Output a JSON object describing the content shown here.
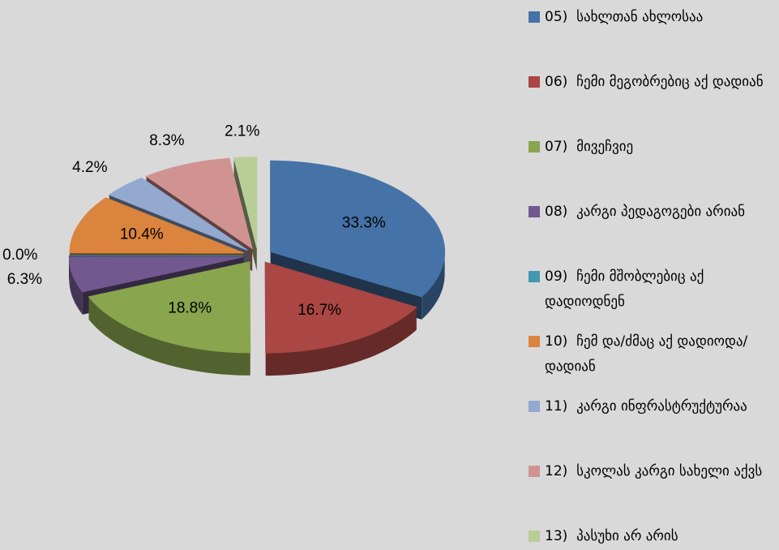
{
  "chart_data": {
    "type": "pie",
    "categories": [
      "05)  სახლთან ახლოსაა",
      "06)  ჩემი მეგობრებიც აქ დადიან",
      "07)  მივეჩვიე",
      "08)  კარგი პედაგოგები არიან",
      "09)  ჩემი მშობლებიც აქ დადიოდნენ",
      "10)  ჩემ და/ძმაც აქ დადიოდა/დადიან",
      "11)  კარგი ინფრასტრუქტურაა",
      "12)  სკოლას კარგი სახელი აქვს",
      "13)  პასუხი არ არის"
    ],
    "values": [
      33.3,
      16.7,
      18.8,
      6.3,
      0.0,
      10.4,
      4.2,
      8.3,
      2.1
    ],
    "value_labels": [
      "33.3%",
      "16.7%",
      "18.8%",
      "6.3%",
      "0.0%",
      "10.4%",
      "4.2%",
      "8.3%",
      "2.1%"
    ],
    "colors": [
      "#4572a7",
      "#aa4643",
      "#89a54e",
      "#71588f",
      "#4198af",
      "#db843d",
      "#93a9cf",
      "#d19392",
      "#b9cd96"
    ],
    "legend": "right"
  }
}
